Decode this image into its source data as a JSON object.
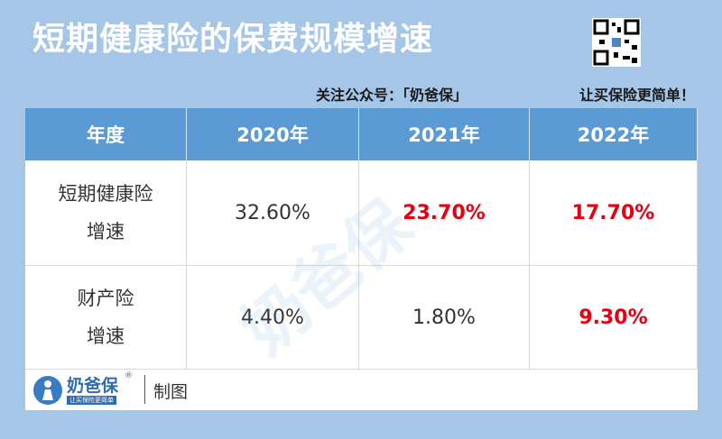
{
  "header": {
    "title": "短期健康险的保费规模增速",
    "follow": "关注公众号：「奶爸保」",
    "slogan": "让买保险更简单！"
  },
  "table": {
    "columns": [
      "年度",
      "2020年",
      "2021年",
      "2022年"
    ],
    "rows": [
      {
        "label": [
          "短期健康险",
          "增速"
        ],
        "values": [
          "32.60%",
          "23.70%",
          "17.70%"
        ]
      },
      {
        "label": [
          "财产险",
          "增速"
        ],
        "values": [
          "4.40%",
          "1.80%",
          "9.30%"
        ]
      }
    ]
  },
  "footer": {
    "brand": "奶爸保",
    "registered": "®",
    "tagline": "让买保险更简单",
    "note": "制图"
  }
}
